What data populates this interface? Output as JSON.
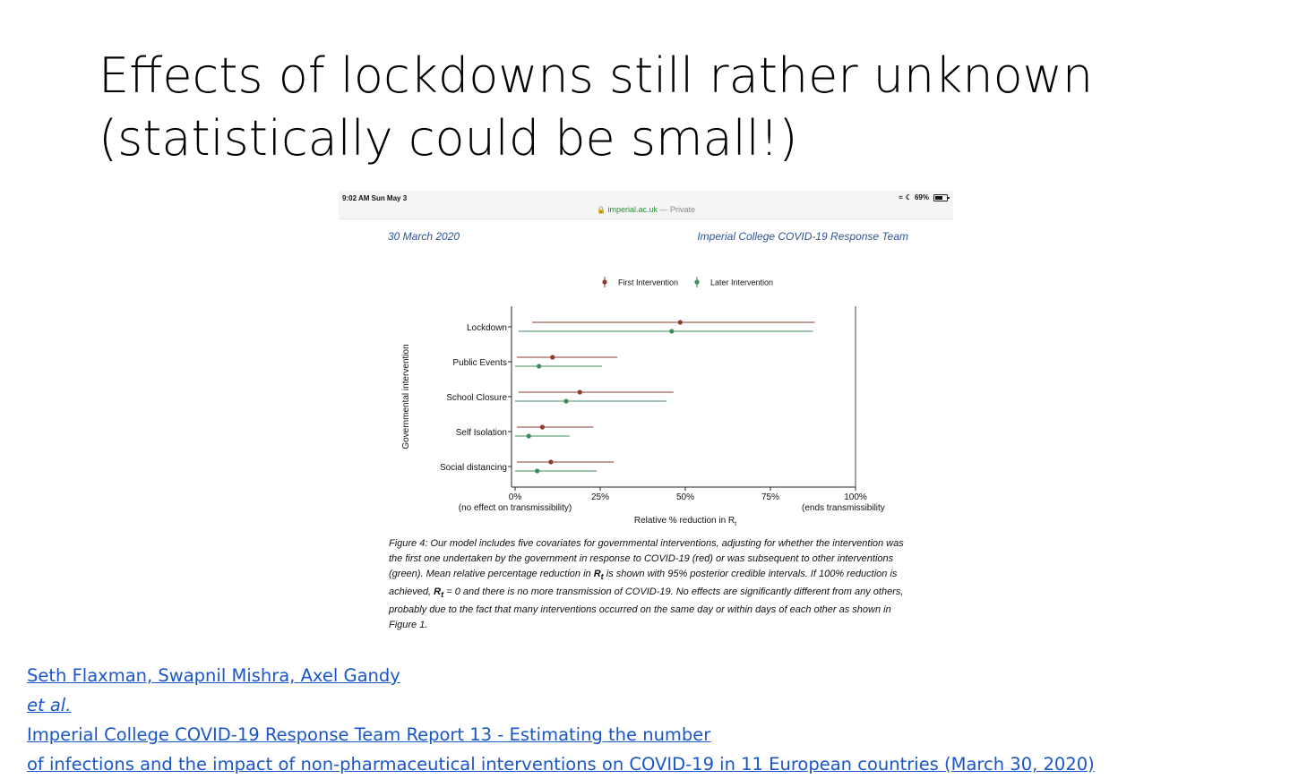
{
  "slide": {
    "title_line1": "Effects of lockdowns still rather unknown",
    "title_line2": "(statistically could be small!)"
  },
  "screenshot": {
    "status_time": "9:02 AM   Sun May 3",
    "battery": "69%",
    "url_host": "imperial.ac.uk",
    "url_suffix": "— Private",
    "doc_date": "30 March 2020",
    "doc_team": "Imperial College COVID-19 Response Team"
  },
  "chart_data": {
    "type": "forest",
    "ylabel": "Governmental intervention",
    "xlabel": "Relative % reduction in R",
    "xlabel_subscript": "t",
    "xlim": [
      0,
      100
    ],
    "x_ticks": [
      "0%",
      "25%",
      "50%",
      "75%",
      "100%"
    ],
    "x_tick_values": [
      0,
      25,
      50,
      75,
      100
    ],
    "x_note_left": "(no effect on transmissibility)",
    "x_note_right": "(ends transmissibility",
    "legend_position": "top",
    "categories": [
      "Lockdown",
      "Public Events",
      "School Closure",
      "Self Isolation",
      "Social distancing"
    ],
    "series": [
      {
        "name": "First Intervention",
        "color": "#8c3b2c",
        "mean": [
          48.5,
          11.0,
          19.0,
          8.0,
          10.5
        ],
        "lower": [
          5.0,
          0.5,
          1.0,
          0.5,
          0.5
        ],
        "upper": [
          88.0,
          30.0,
          46.5,
          23.0,
          29.0
        ]
      },
      {
        "name": "Later Intervention",
        "color": "#3c8c5c",
        "mean": [
          46.0,
          7.0,
          15.0,
          4.0,
          6.5
        ],
        "lower": [
          1.0,
          0.0,
          0.0,
          0.0,
          0.0
        ],
        "upper": [
          87.5,
          25.5,
          44.5,
          16.0,
          24.0
        ]
      }
    ]
  },
  "figure_caption": {
    "part1": "Figure 4: Our model includes five covariates for governmental interventions, adjusting for whether the intervention was the first one undertaken by the government in response to COVID-19 (red) or was subsequent to other interventions (green). Mean relative percentage reduction in ",
    "rt1": "R",
    "rt1_sub": "t",
    "part2": " is shown with 95% posterior credible intervals. If 100% reduction is achieved, ",
    "rt2": "R",
    "rt2_sub": "t",
    "part3": " = 0 and there is no more transmission of COVID-19. No effects are significantly different from any others, probably due to the fact that many interventions occurred on the same day or within days of each other as shown in Figure 1."
  },
  "citation": {
    "authors": "Seth Flaxman, Swapnil Mishra, Axel Gandy ",
    "etal": "et al.",
    "line1_rest": " Imperial College COVID-19 Response Team Report 13 - Estimating the number",
    "line2": "of infections and the impact of non-pharmaceutical interventions on COVID-19 in 11 European countries (March 30, 2020)"
  }
}
